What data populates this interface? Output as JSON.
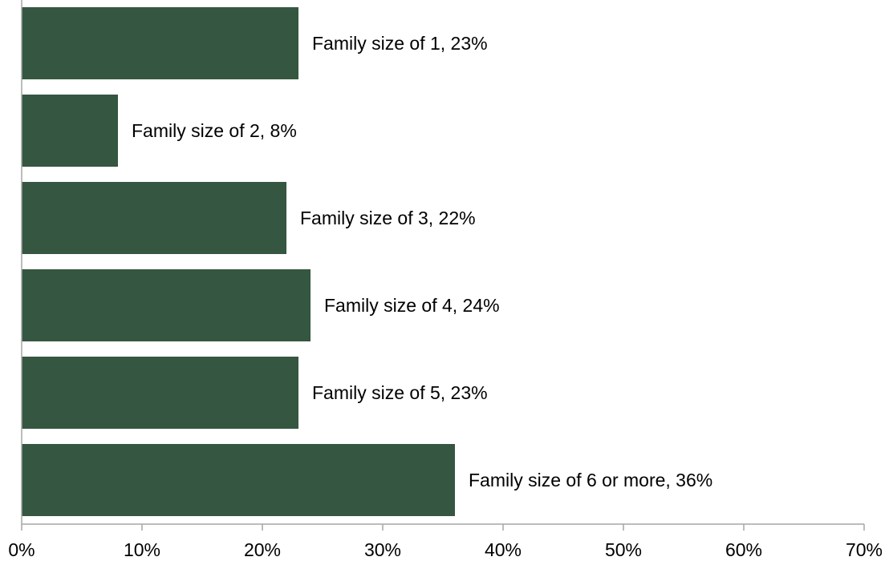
{
  "chart_data": {
    "type": "bar",
    "orientation": "horizontal",
    "categories": [
      "Family size of 1",
      "Family size of 2",
      "Family size of 3",
      "Family size of 4",
      "Family size of 5",
      "Family size of 6 or more"
    ],
    "values": [
      23,
      8,
      22,
      24,
      23,
      36
    ],
    "data_labels": [
      "Family size of 1, 23%",
      "Family size of 2, 8%",
      "Family size of 3, 22%",
      "Family size of 4, 24%",
      "Family size of 5, 23%",
      "Family size of 6 or more, 36%"
    ],
    "title": "",
    "xlabel": "",
    "ylabel": "",
    "xlim": [
      0,
      70
    ],
    "x_ticks": [
      0,
      10,
      20,
      30,
      40,
      50,
      60,
      70
    ],
    "x_tick_labels": [
      "0%",
      "10%",
      "20%",
      "30%",
      "40%",
      "50%",
      "60%",
      "70%"
    ],
    "grid": false,
    "legend": "none",
    "colors": {
      "bar": "#355640",
      "axis": "#a6a6a6",
      "text": "#000000"
    }
  }
}
